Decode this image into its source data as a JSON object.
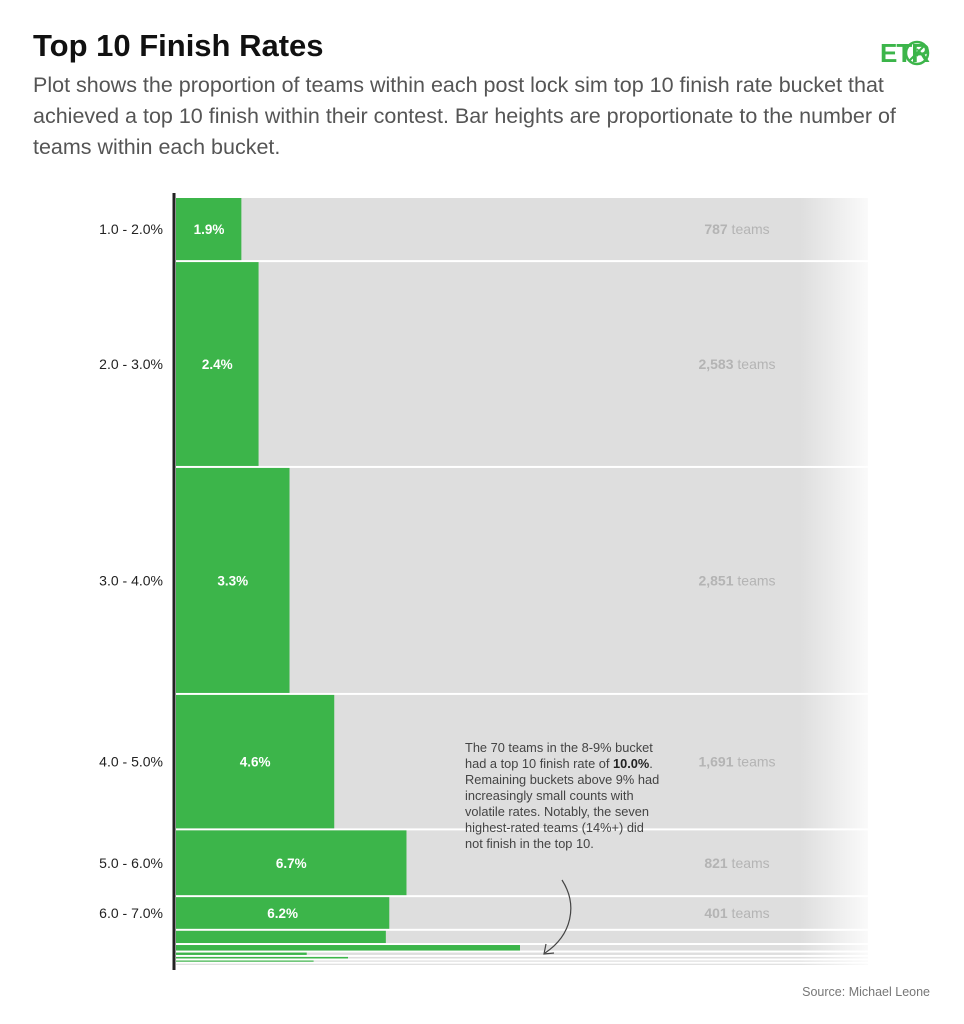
{
  "header": {
    "title": "Top 10 Finish Rates",
    "subtitle": "Plot shows the proportion of teams within each post lock sim top 10 finish rate bucket that achieved a top 10 finish within their contest. Bar heights are proportionate to the number of teams within each bucket.",
    "logo_text": "ETR"
  },
  "annotation": {
    "before": "The 70 teams in the 8-9% bucket had a top 10 finish rate of ",
    "bold": "10.0%",
    "after": ". Remaining buckets above 9% had increasingly small counts with volatile rates. Notably, the seven highest-rated teams (14%+) did not finish in the top 10."
  },
  "source": "Source: Michael Leone",
  "colors": {
    "bar": "#3cb54a",
    "background": "#dedede",
    "axis": "#222222",
    "count_text": "#b4b4b4"
  },
  "chart_data": {
    "type": "bar",
    "orientation": "horizontal",
    "bar_height_encodes": "team count",
    "count_suffix": "teams",
    "buckets": [
      {
        "label": "1.0 - 2.0%",
        "rate": 1.9,
        "rate_label": "1.9%",
        "teams": 787,
        "teams_label": "787"
      },
      {
        "label": "2.0 - 3.0%",
        "rate": 2.4,
        "rate_label": "2.4%",
        "teams": 2583,
        "teams_label": "2,583"
      },
      {
        "label": "3.0 - 4.0%",
        "rate": 3.3,
        "rate_label": "3.3%",
        "teams": 2851,
        "teams_label": "2,851"
      },
      {
        "label": "4.0 - 5.0%",
        "rate": 4.6,
        "rate_label": "4.6%",
        "teams": 1691,
        "teams_label": "1,691"
      },
      {
        "label": "5.0 - 6.0%",
        "rate": 6.7,
        "rate_label": "6.7%",
        "teams": 821,
        "teams_label": "821"
      },
      {
        "label": "6.0 - 7.0%",
        "rate": 6.2,
        "rate_label": "6.2%",
        "teams": 401,
        "teams_label": "401"
      },
      {
        "label": "",
        "rate": 6.1,
        "rate_label": "",
        "teams": 155,
        "teams_label": ""
      },
      {
        "label": "",
        "rate": 10.0,
        "rate_label": "",
        "teams": 70,
        "teams_label": ""
      },
      {
        "label": "",
        "rate": 3.8,
        "rate_label": "",
        "teams": 30,
        "teams_label": ""
      },
      {
        "label": "",
        "rate": 5.0,
        "rate_label": "",
        "teams": 20,
        "teams_label": ""
      },
      {
        "label": "",
        "rate": 4.0,
        "rate_label": "",
        "teams": 12,
        "teams_label": ""
      },
      {
        "label": "",
        "rate": 0.0,
        "rate_label": "",
        "teams": 7,
        "teams_label": ""
      }
    ]
  }
}
